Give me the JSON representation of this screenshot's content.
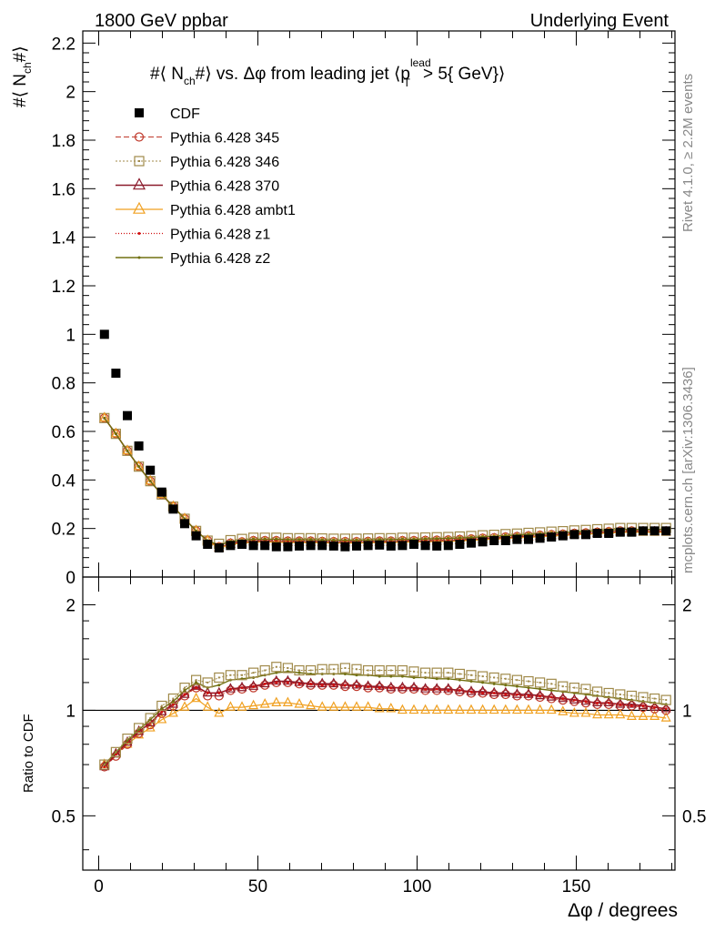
{
  "header": {
    "left": "1800 GeV ppbar",
    "right": "Underlying Event"
  },
  "side_text": {
    "rivet": "Rivet 4.1.0, ≥ 2.2M events",
    "source": "mcplots.cern.ch [arXiv:1306.3436]"
  },
  "colors": {
    "cdf": "#000000",
    "p345": "#c0392b",
    "p346": "#a08a4a",
    "p370": "#8b1a2b",
    "ambt1": "#f0a020",
    "z1": "#d01010",
    "z2": "#707010"
  },
  "chart_data": [
    {
      "type": "scatter",
      "title": "#⟨ N_ch#⟩ vs. Δφ from leading jet (p_T^lead > 5{ GeV})",
      "title_parts": {
        "main": "#⟨ N",
        "sub_ch": "ch",
        "mid": "#⟩ vs. Δφ from leading jet  ⟨p",
        "sup_lead": "lead",
        "sub_T": "T",
        "tail": "> 5{ GeV}⟩"
      },
      "ylabel_parts": {
        "main": "#⟨ N",
        "sub": "ch",
        "end": "#⟩"
      },
      "xlim": [
        -5,
        181
      ],
      "ylim": [
        0,
        2.25
      ],
      "yticks": [
        0,
        0.2,
        0.4,
        0.6,
        0.8,
        1,
        1.2,
        1.4,
        1.6,
        1.8,
        2,
        2.2
      ],
      "ytick_labels": [
        "0",
        "0.2",
        "0.4",
        "0.6",
        "0.8",
        "1",
        "1.2",
        "1.4",
        "1.6",
        "1.8",
        "2",
        "2.2"
      ],
      "legend": [
        {
          "key": "cdf",
          "label": "CDF"
        },
        {
          "key": "p345",
          "label": "Pythia 6.428 345"
        },
        {
          "key": "p346",
          "label": "Pythia 6.428 346"
        },
        {
          "key": "p370",
          "label": "Pythia 6.428 370"
        },
        {
          "key": "ambt1",
          "label": "Pythia 6.428 ambt1"
        },
        {
          "key": "z1",
          "label": "Pythia 6.428 z1"
        },
        {
          "key": "z2",
          "label": "Pythia 6.428 z2"
        }
      ],
      "cdf_x": [
        1.8,
        5.4,
        9,
        12.6,
        16.2,
        19.8,
        23.4,
        27,
        30.6,
        34.2,
        37.8,
        41.4,
        45,
        48.6,
        52.2,
        55.8,
        59.4,
        63,
        66.6,
        70.2,
        73.8,
        77.4,
        81,
        84.6,
        88.2,
        91.8,
        95.4,
        99,
        102.6,
        106.2,
        109.8,
        113.4,
        117,
        120.6,
        124.2,
        127.8,
        131.4,
        135,
        138.6,
        142.2,
        145.8,
        149.4,
        153,
        156.6,
        160.2,
        163.8,
        167.4,
        171,
        174.6,
        178.2
      ],
      "cdf_y": [
        1.0,
        0.84,
        0.665,
        0.54,
        0.44,
        0.35,
        0.28,
        0.22,
        0.17,
        0.135,
        0.12,
        0.13,
        0.135,
        0.13,
        0.13,
        0.125,
        0.125,
        0.128,
        0.13,
        0.13,
        0.128,
        0.125,
        0.128,
        0.13,
        0.132,
        0.128,
        0.13,
        0.135,
        0.13,
        0.128,
        0.13,
        0.135,
        0.14,
        0.145,
        0.15,
        0.15,
        0.155,
        0.155,
        0.16,
        0.165,
        0.17,
        0.175,
        0.175,
        0.18,
        0.18,
        0.185,
        0.185,
        0.19,
        0.19,
        0.19
      ],
      "mc_y": [
        0.655,
        0.59,
        0.52,
        0.455,
        0.395,
        0.34,
        0.29,
        0.24,
        0.19,
        0.15,
        0.125,
        0.14,
        0.145,
        0.15,
        0.15,
        0.15,
        0.148,
        0.148,
        0.148,
        0.147,
        0.146,
        0.146,
        0.146,
        0.147,
        0.148,
        0.148,
        0.15,
        0.15,
        0.151,
        0.152,
        0.153,
        0.155,
        0.157,
        0.16,
        0.162,
        0.165,
        0.167,
        0.17,
        0.172,
        0.175,
        0.177,
        0.18,
        0.182,
        0.185,
        0.187,
        0.19,
        0.19,
        0.19,
        0.19,
        0.19
      ]
    },
    {
      "type": "line",
      "title": "Ratio to CDF",
      "ylabel": "Ratio to CDF",
      "xlabel": "Δφ / degrees",
      "xlim": [
        -5,
        181
      ],
      "ylim_log": [
        0.35,
        2.4
      ],
      "yticks": [
        0.5,
        1,
        2
      ],
      "ytick_labels": [
        "0.5",
        "1",
        "2"
      ],
      "xticks": [
        0,
        50,
        100,
        150
      ],
      "xtick_labels": [
        "0",
        "50",
        "100",
        "150"
      ],
      "reference_line": 1,
      "series": [
        {
          "key": "ambt1",
          "name": "Pythia 6.428 ambt1",
          "values": [
            0.7,
            0.75,
            0.8,
            0.85,
            0.89,
            0.94,
            0.98,
            1.02,
            1.08,
            1.02,
            0.98,
            1.02,
            1.02,
            1.03,
            1.04,
            1.05,
            1.05,
            1.04,
            1.03,
            1.02,
            1.02,
            1.02,
            1.02,
            1.02,
            1.01,
            1.01,
            1.0,
            1.0,
            1.0,
            1.0,
            1.0,
            1.0,
            1.0,
            1.0,
            1.0,
            1.0,
            1.0,
            1.0,
            1.0,
            1.0,
            0.99,
            0.98,
            0.98,
            0.97,
            0.97,
            0.97,
            0.96,
            0.96,
            0.96,
            0.95
          ]
        },
        {
          "key": "p345",
          "name": "Pythia 6.428 345",
          "values": [
            0.69,
            0.74,
            0.8,
            0.86,
            0.91,
            0.98,
            1.03,
            1.1,
            1.16,
            1.1,
            1.1,
            1.14,
            1.15,
            1.16,
            1.18,
            1.2,
            1.2,
            1.19,
            1.18,
            1.18,
            1.18,
            1.17,
            1.17,
            1.16,
            1.16,
            1.15,
            1.15,
            1.15,
            1.14,
            1.14,
            1.14,
            1.13,
            1.12,
            1.12,
            1.11,
            1.11,
            1.1,
            1.1,
            1.09,
            1.08,
            1.07,
            1.06,
            1.05,
            1.04,
            1.04,
            1.03,
            1.03,
            1.02,
            1.01,
            1.0
          ]
        },
        {
          "key": "p370",
          "name": "Pythia 6.428 370",
          "values": [
            0.69,
            0.75,
            0.81,
            0.87,
            0.92,
            0.99,
            1.04,
            1.11,
            1.17,
            1.12,
            1.12,
            1.15,
            1.16,
            1.17,
            1.19,
            1.21,
            1.21,
            1.2,
            1.19,
            1.19,
            1.19,
            1.18,
            1.18,
            1.17,
            1.17,
            1.16,
            1.16,
            1.16,
            1.15,
            1.15,
            1.15,
            1.14,
            1.13,
            1.13,
            1.12,
            1.12,
            1.11,
            1.11,
            1.1,
            1.09,
            1.08,
            1.07,
            1.06,
            1.05,
            1.05,
            1.04,
            1.04,
            1.03,
            1.02,
            1.01
          ]
        },
        {
          "key": "z1",
          "name": "Pythia 6.428 z1",
          "values": [
            0.69,
            0.75,
            0.81,
            0.87,
            0.92,
            0.99,
            1.04,
            1.11,
            1.16,
            1.12,
            1.12,
            1.15,
            1.16,
            1.17,
            1.19,
            1.2,
            1.2,
            1.19,
            1.19,
            1.18,
            1.18,
            1.18,
            1.17,
            1.17,
            1.16,
            1.16,
            1.16,
            1.15,
            1.15,
            1.15,
            1.14,
            1.14,
            1.13,
            1.12,
            1.12,
            1.11,
            1.11,
            1.1,
            1.1,
            1.09,
            1.08,
            1.07,
            1.06,
            1.05,
            1.05,
            1.04,
            1.03,
            1.03,
            1.02,
            1.01
          ]
        },
        {
          "key": "z2",
          "name": "Pythia 6.428 z2",
          "values": [
            0.7,
            0.76,
            0.82,
            0.88,
            0.94,
            1.01,
            1.06,
            1.14,
            1.2,
            1.16,
            1.18,
            1.22,
            1.23,
            1.24,
            1.26,
            1.28,
            1.29,
            1.28,
            1.27,
            1.27,
            1.27,
            1.27,
            1.26,
            1.26,
            1.25,
            1.25,
            1.25,
            1.24,
            1.24,
            1.23,
            1.23,
            1.22,
            1.21,
            1.2,
            1.19,
            1.18,
            1.17,
            1.16,
            1.15,
            1.14,
            1.13,
            1.12,
            1.11,
            1.1,
            1.09,
            1.08,
            1.07,
            1.06,
            1.05,
            1.04
          ]
        },
        {
          "key": "p346",
          "name": "Pythia 6.428 346",
          "values": [
            0.7,
            0.76,
            0.83,
            0.89,
            0.95,
            1.03,
            1.08,
            1.16,
            1.22,
            1.2,
            1.24,
            1.26,
            1.26,
            1.28,
            1.3,
            1.33,
            1.32,
            1.3,
            1.3,
            1.31,
            1.31,
            1.32,
            1.31,
            1.3,
            1.3,
            1.3,
            1.3,
            1.29,
            1.28,
            1.28,
            1.28,
            1.27,
            1.26,
            1.25,
            1.24,
            1.23,
            1.22,
            1.21,
            1.2,
            1.19,
            1.17,
            1.16,
            1.15,
            1.13,
            1.12,
            1.11,
            1.1,
            1.09,
            1.08,
            1.07
          ]
        }
      ]
    }
  ]
}
